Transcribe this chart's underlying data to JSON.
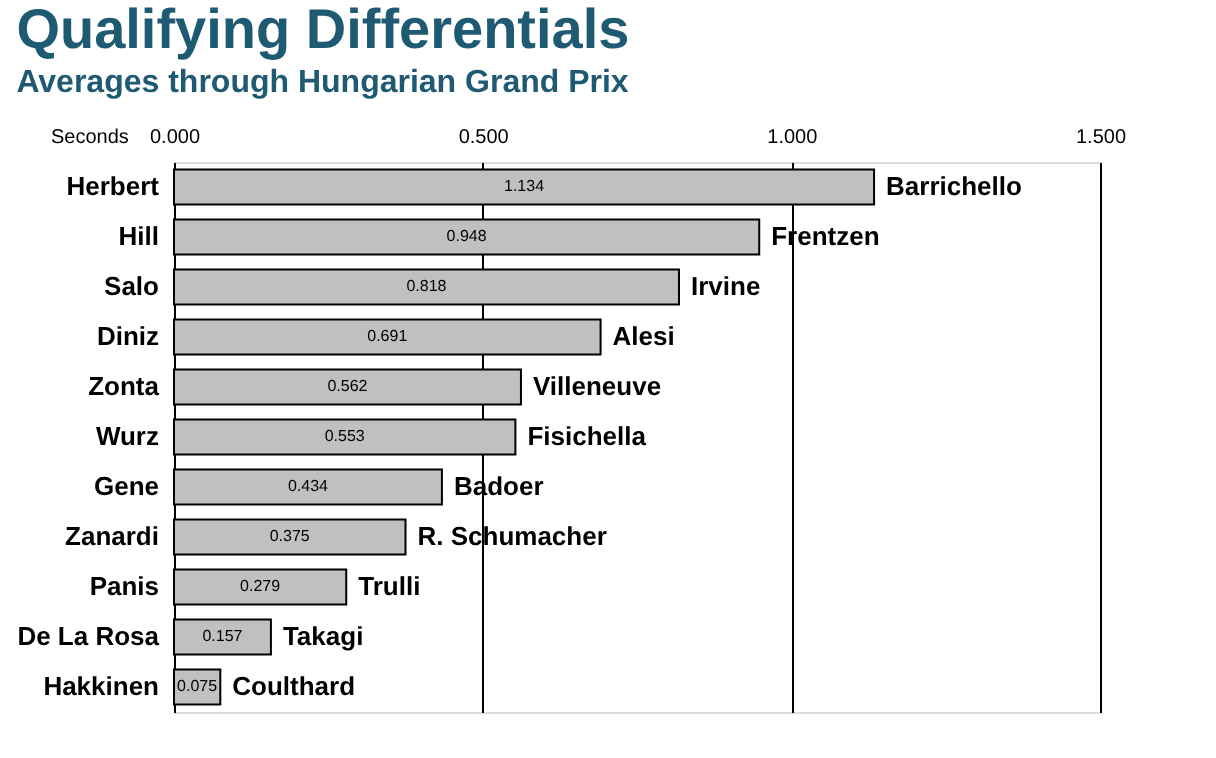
{
  "chart_data": {
    "type": "bar",
    "orientation": "horizontal",
    "title": "Qualifying Differentials",
    "subtitle": "Averages through Hungarian Grand Prix",
    "xlabel": "Seconds",
    "categories": [
      "Herbert",
      "Hill",
      "Salo",
      "Diniz",
      "Zonta",
      "Wurz",
      "Gene",
      "Zanardi",
      "Panis",
      "De La Rosa",
      "Hakkinen"
    ],
    "values": [
      1.134,
      0.948,
      0.818,
      0.691,
      0.562,
      0.553,
      0.434,
      0.375,
      0.279,
      0.157,
      0.075
    ],
    "color": "#c0c0c0",
    "data_labels": true,
    "xlim": [
      0,
      1.5
    ],
    "xticks": [
      {
        "value": 0,
        "label": "0.000"
      },
      {
        "value": 0.5,
        "label": "0.500"
      },
      {
        "value": 1.0,
        "label": "1.000"
      },
      {
        "value": 1.5,
        "label": "1.500"
      }
    ],
    "grid": "x",
    "legend": false,
    "annotations": [
      {
        "text": "Barrichello",
        "x": 1.134,
        "y": "Herbert"
      },
      {
        "text": "Frentzen",
        "x": 0.948,
        "y": "Hill"
      },
      {
        "text": "Irvine",
        "x": 0.818,
        "y": "Salo"
      },
      {
        "text": "Alesi",
        "x": 0.691,
        "y": "Diniz"
      },
      {
        "text": "Villeneuve",
        "x": 0.562,
        "y": "Zonta"
      },
      {
        "text": "Fisichella",
        "x": 0.553,
        "y": "Wurz"
      },
      {
        "text": "Badoer",
        "x": 0.434,
        "y": "Gene"
      },
      {
        "text": "R. Schumacher",
        "x": 0.375,
        "y": "Zanardi"
      },
      {
        "text": "Trulli",
        "x": 0.279,
        "y": "Panis"
      },
      {
        "text": "Takagi",
        "x": 0.157,
        "y": "De La Rosa"
      },
      {
        "text": "Coulthard",
        "x": 0.075,
        "y": "Hakkinen"
      }
    ]
  }
}
